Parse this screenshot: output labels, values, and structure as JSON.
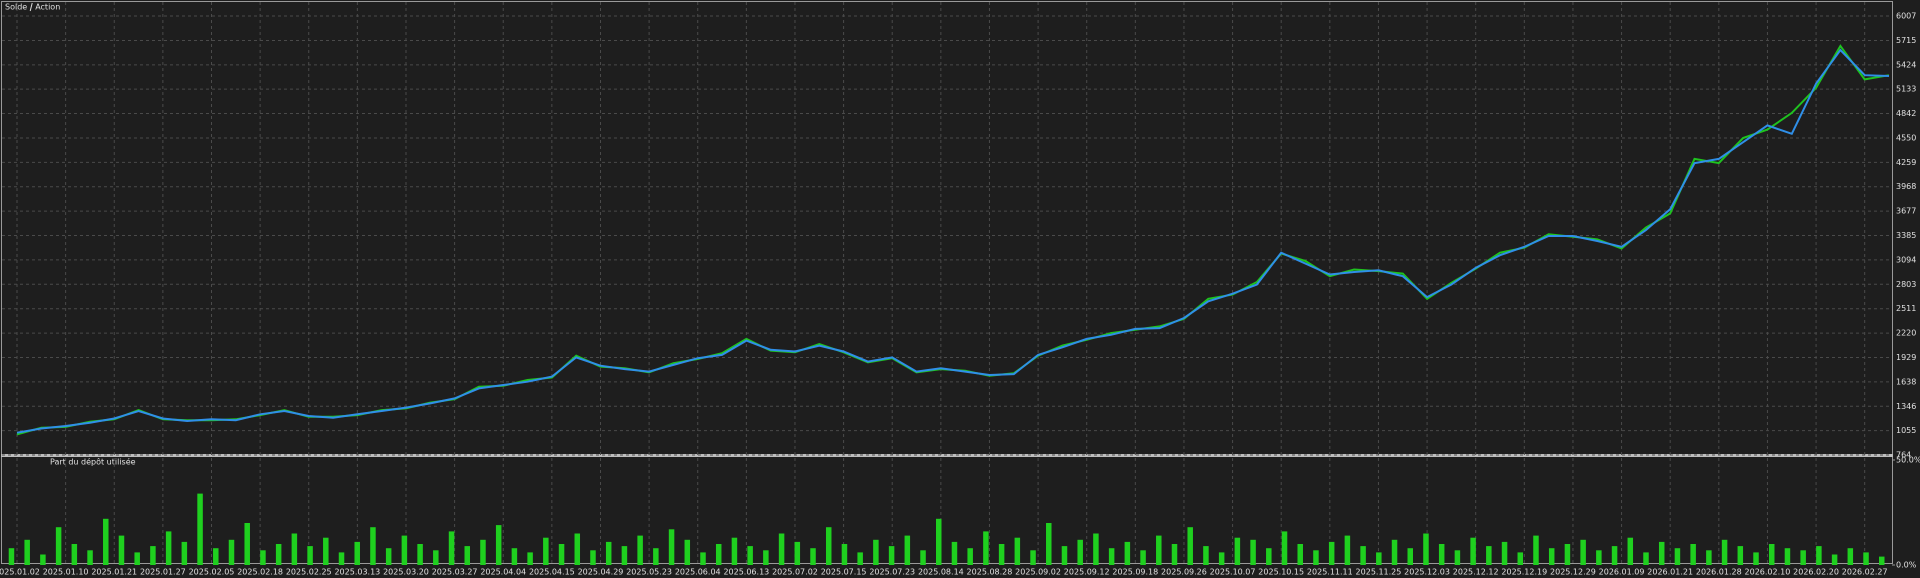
{
  "chart_data": [
    {
      "type": "line",
      "categories": [
        "2025.01.02",
        null,
        "2025.01.10",
        null,
        "2025.01.21",
        null,
        "2025.01.27",
        null,
        "2025.02.05",
        null,
        "2025.02.18",
        null,
        "2025.02.25",
        null,
        "2025.03.13",
        null,
        "2025.03.20",
        null,
        "2025.03.27",
        null,
        "2025.04.04",
        null,
        "2025.04.15",
        null,
        "2025.04.29",
        null,
        "2025.05.23",
        null,
        "2025.06.04",
        null,
        "2025.06.13",
        null,
        "2025.07.02",
        null,
        "2025.07.15",
        null,
        "2025.07.23",
        null,
        "2025.08.14",
        null,
        "2025.08.28",
        null,
        "2025.09.02",
        null,
        "2025.09.12",
        null,
        "2025.09.18",
        null,
        "2025.09.26",
        null,
        "2025.10.07",
        null,
        "2025.10.15",
        null,
        "2025.11.11",
        null,
        "2025.11.25",
        null,
        "2025.12.03",
        null,
        "2025.12.12",
        null,
        "2025.12.19",
        null,
        "2025.12.29",
        null,
        "2026.01.09",
        null,
        "2026.01.21",
        null,
        "2026.01.28",
        null,
        "2026.02.10",
        null,
        "2026.02.20",
        null,
        "2026.02.27",
        null
      ],
      "series": [
        {
          "name": "Solde",
          "color": "#2f8fe8",
          "values": [
            1030,
            1080,
            1110,
            1150,
            1200,
            1290,
            1200,
            1170,
            1190,
            1180,
            1250,
            1290,
            1230,
            1210,
            1250,
            1290,
            1330,
            1380,
            1440,
            1560,
            1600,
            1640,
            1700,
            1930,
            1830,
            1790,
            1760,
            1840,
            1920,
            1960,
            2130,
            2020,
            2000,
            2070,
            2000,
            1880,
            1930,
            1760,
            1800,
            1760,
            1720,
            1730,
            1960,
            2050,
            2150,
            2200,
            2270,
            2280,
            2400,
            2600,
            2690,
            2800,
            3180,
            3050,
            2920,
            2950,
            2970,
            2900,
            2650,
            2800,
            3000,
            3150,
            3250,
            3380,
            3380,
            3320,
            3250,
            3450,
            3700,
            4250,
            4300,
            4500,
            4700,
            4600,
            5200,
            5600,
            5300,
            5290
          ]
        },
        {
          "name": "Action",
          "color": "#1fc21f",
          "values": [
            1010,
            1090,
            1100,
            1160,
            1190,
            1300,
            1190,
            1180,
            1180,
            1190,
            1240,
            1300,
            1220,
            1220,
            1240,
            1300,
            1320,
            1390,
            1430,
            1580,
            1590,
            1660,
            1690,
            1950,
            1820,
            1800,
            1750,
            1860,
            1910,
            1980,
            2150,
            2010,
            1990,
            2090,
            1990,
            1870,
            1920,
            1750,
            1790,
            1770,
            1710,
            1740,
            1950,
            2070,
            2140,
            2220,
            2260,
            2300,
            2390,
            2630,
            2680,
            2830,
            3170,
            3080,
            2900,
            2980,
            2960,
            2930,
            2630,
            2820,
            2990,
            3180,
            3240,
            3400,
            3370,
            3340,
            3230,
            3480,
            3650,
            4300,
            4250,
            4550,
            4650,
            4850,
            5150,
            5650,
            5250,
            5300
          ]
        }
      ],
      "ylim": [
        764,
        6007
      ],
      "yticks": [
        764,
        1055,
        1346,
        1638,
        1929,
        2220,
        2511,
        2803,
        3094,
        3385,
        3677,
        3968,
        4259,
        4550,
        4842,
        5133,
        5424,
        5715,
        6007
      ],
      "grid": true,
      "legend": "top-left"
    },
    {
      "type": "bar",
      "title": "Part du dépôt utilisée",
      "color": "#1fd01f",
      "values": [
        8,
        12,
        5,
        18,
        10,
        7,
        22,
        14,
        6,
        9,
        16,
        11,
        34,
        8,
        12,
        20,
        7,
        10,
        15,
        9,
        13,
        6,
        11,
        18,
        8,
        14,
        10,
        7,
        16,
        9,
        12,
        19,
        8,
        6,
        13,
        10,
        15,
        7,
        11,
        9,
        14,
        8,
        17,
        12,
        6,
        10,
        13,
        9,
        7,
        15,
        11,
        8,
        18,
        10,
        6,
        12,
        9,
        14,
        7,
        22,
        11,
        8,
        16,
        10,
        13,
        7,
        20,
        9,
        12,
        15,
        8,
        11,
        7,
        14,
        10,
        18,
        9,
        6,
        13,
        12,
        8,
        16,
        10,
        7,
        11,
        14,
        9,
        6,
        12,
        8,
        15,
        10,
        7,
        13,
        9,
        11,
        6,
        14,
        8,
        10,
        12,
        7,
        9,
        13,
        6,
        11,
        8,
        10,
        7,
        12,
        9,
        6,
        10,
        8,
        7,
        9,
        5,
        8,
        6,
        4
      ],
      "ylim": [
        0,
        50
      ],
      "yticks": [
        {
          "value": 0,
          "label": "0.0%"
        },
        {
          "value": 50,
          "label": "50.0%"
        }
      ]
    }
  ]
}
